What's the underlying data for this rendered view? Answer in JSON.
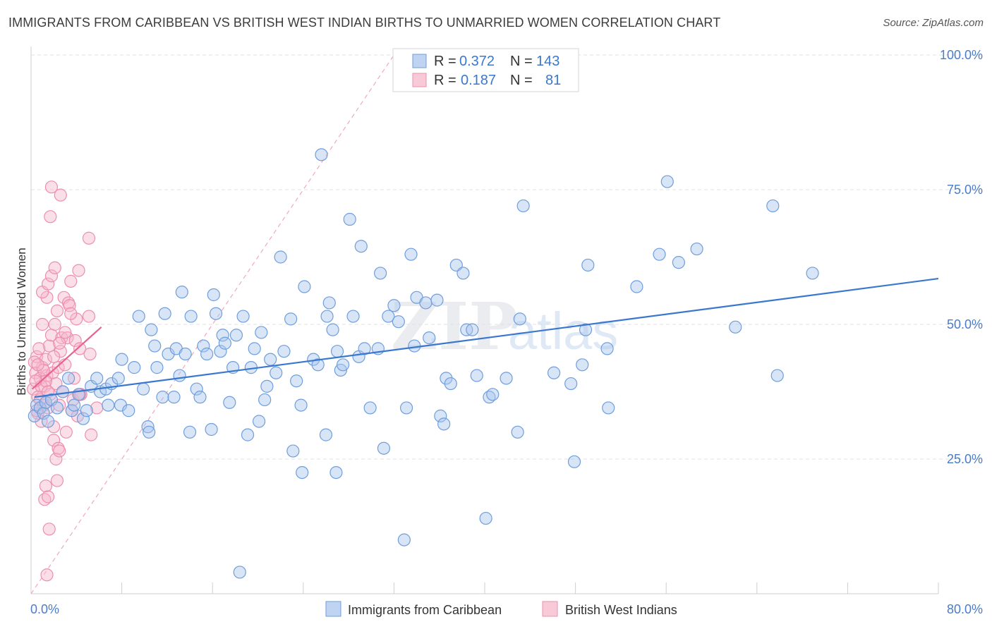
{
  "header": {
    "title": "IMMIGRANTS FROM CARIBBEAN VS BRITISH WEST INDIAN BIRTHS TO UNMARRIED WOMEN CORRELATION CHART",
    "source": "Source: ZipAtlas.com"
  },
  "watermark": {
    "zip": "ZIP",
    "atlas": "atlas"
  },
  "legend": {
    "r_label": "R =",
    "n_label": "N =",
    "series": [
      {
        "r": "0.372",
        "n": "143"
      },
      {
        "r": "0.187",
        "n": "81"
      }
    ]
  },
  "bottom_legend": [
    "Immigrants from Caribbean",
    "British West Indians"
  ],
  "colors": {
    "blue_fill": "#a9c6ee",
    "blue_stroke": "#6f9edc",
    "blue_line": "#3a78cf",
    "pink_fill": "#f6b8cb",
    "pink_stroke": "#ec8fae",
    "pink_line": "#e8638d",
    "label_text": "#4a7cc9",
    "value_text": "#3a78cf",
    "grid": "#e2e2e2"
  },
  "chart_data": {
    "type": "scatter",
    "title": "IMMIGRANTS FROM CARIBBEAN VS BRITISH WEST INDIAN BIRTHS TO UNMARRIED WOMEN CORRELATION CHART",
    "xlabel": "",
    "ylabel": "Births to Unmarried Women",
    "xlim": [
      0,
      80
    ],
    "ylim": [
      0,
      100
    ],
    "x_tick_labels": [
      "0.0%",
      "80.0%"
    ],
    "y_ticks": [
      25,
      50,
      75,
      100
    ],
    "y_tick_labels": [
      "25.0%",
      "50.0%",
      "75.0%",
      "100.0%"
    ],
    "grid": true,
    "legend_position": "top-center",
    "series": [
      {
        "name": "Immigrants from Caribbean",
        "r": 0.372,
        "n": 143,
        "trend": [
          [
            0.3,
            36.5
          ],
          [
            80,
            58.5
          ]
        ],
        "points": [
          [
            0.3,
            33
          ],
          [
            0.5,
            35
          ],
          [
            0.8,
            34.5
          ],
          [
            1.1,
            33.5
          ],
          [
            1.3,
            35.5
          ],
          [
            1.5,
            32
          ],
          [
            1.8,
            36
          ],
          [
            2.3,
            34.5
          ],
          [
            2.8,
            37.5
          ],
          [
            3.3,
            40
          ],
          [
            3.6,
            34
          ],
          [
            3.8,
            35
          ],
          [
            4.2,
            37
          ],
          [
            4.6,
            32.5
          ],
          [
            4.9,
            34
          ],
          [
            5.3,
            38.5
          ],
          [
            5.8,
            40
          ],
          [
            6.1,
            37.5
          ],
          [
            6.6,
            38
          ],
          [
            6.8,
            35
          ],
          [
            7.1,
            39
          ],
          [
            7.7,
            40
          ],
          [
            7.9,
            35
          ],
          [
            8,
            43.5
          ],
          [
            8.6,
            34
          ],
          [
            9.1,
            42
          ],
          [
            9.5,
            51.5
          ],
          [
            9.9,
            38
          ],
          [
            10.3,
            31
          ],
          [
            10.4,
            30
          ],
          [
            10.6,
            49
          ],
          [
            10.9,
            46
          ],
          [
            11.1,
            42
          ],
          [
            11.6,
            36.5
          ],
          [
            11.8,
            52
          ],
          [
            12.1,
            44.5
          ],
          [
            12.6,
            36.5
          ],
          [
            12.8,
            45.5
          ],
          [
            13.1,
            40.5
          ],
          [
            13.3,
            56
          ],
          [
            13.6,
            44.5
          ],
          [
            14,
            30
          ],
          [
            14.1,
            51.5
          ],
          [
            14.6,
            38
          ],
          [
            14.9,
            36.5
          ],
          [
            15.2,
            46
          ],
          [
            15.5,
            44.5
          ],
          [
            15.9,
            30.5
          ],
          [
            16.1,
            55.5
          ],
          [
            16.3,
            52
          ],
          [
            16.7,
            45
          ],
          [
            16.9,
            48
          ],
          [
            17.1,
            46.5
          ],
          [
            17.5,
            35.5
          ],
          [
            17.8,
            42
          ],
          [
            18.1,
            48
          ],
          [
            18.4,
            4
          ],
          [
            18.7,
            51.5
          ],
          [
            19.1,
            29.5
          ],
          [
            19.4,
            42
          ],
          [
            19.7,
            45.5
          ],
          [
            20.1,
            32
          ],
          [
            20.3,
            48.5
          ],
          [
            20.6,
            36
          ],
          [
            20.8,
            38.5
          ],
          [
            21.1,
            43.5
          ],
          [
            21.6,
            41
          ],
          [
            22,
            62.5
          ],
          [
            22.3,
            45
          ],
          [
            22.9,
            51
          ],
          [
            23.1,
            26.5
          ],
          [
            23.4,
            39.5
          ],
          [
            23.8,
            35
          ],
          [
            23.9,
            22.5
          ],
          [
            24.1,
            57
          ],
          [
            24.9,
            43.5
          ],
          [
            25.3,
            42.5
          ],
          [
            25.6,
            81.5
          ],
          [
            26,
            29.5
          ],
          [
            26.1,
            51.5
          ],
          [
            26.3,
            54
          ],
          [
            26.6,
            49
          ],
          [
            26.9,
            22.5
          ],
          [
            27,
            45
          ],
          [
            27.3,
            41.5
          ],
          [
            27.5,
            42.5
          ],
          [
            28.1,
            69.5
          ],
          [
            28.4,
            51.5
          ],
          [
            28.9,
            44
          ],
          [
            29.1,
            64.5
          ],
          [
            29.4,
            45.5
          ],
          [
            29.9,
            34.5
          ],
          [
            30.6,
            45.5
          ],
          [
            30.8,
            59.5
          ],
          [
            31.1,
            27
          ],
          [
            31.5,
            51.5
          ],
          [
            32,
            53.5
          ],
          [
            32.4,
            50.5
          ],
          [
            33.1,
            34.5
          ],
          [
            33.5,
            63
          ],
          [
            33.8,
            46
          ],
          [
            34,
            55
          ],
          [
            34.8,
            54
          ],
          [
            35.1,
            47.5
          ],
          [
            35.8,
            54.5
          ],
          [
            36.1,
            33
          ],
          [
            36.4,
            31.5
          ],
          [
            36.6,
            40
          ],
          [
            37,
            39
          ],
          [
            37.5,
            61
          ],
          [
            38.1,
            59.5
          ],
          [
            38.4,
            49
          ],
          [
            38.9,
            49
          ],
          [
            39.3,
            40.5
          ],
          [
            40.1,
            14
          ],
          [
            40.4,
            36.5
          ],
          [
            40.7,
            37
          ],
          [
            41.9,
            40
          ],
          [
            42.9,
            30
          ],
          [
            43.1,
            51
          ],
          [
            43.4,
            72
          ],
          [
            46.1,
            41
          ],
          [
            47.6,
            39
          ],
          [
            47.9,
            24.5
          ],
          [
            48.6,
            42.5
          ],
          [
            49.1,
            61
          ],
          [
            50.8,
            45.5
          ],
          [
            50.9,
            34.5
          ],
          [
            53.4,
            57
          ],
          [
            55.4,
            63
          ],
          [
            56.1,
            76.5
          ],
          [
            57.1,
            61.5
          ],
          [
            58.7,
            64
          ],
          [
            62.1,
            49.5
          ],
          [
            65.4,
            72
          ],
          [
            65.8,
            40.5
          ],
          [
            68.9,
            59.5
          ],
          [
            32.9,
            10
          ],
          [
            48.9,
            49
          ]
        ]
      },
      {
        "name": "British West Indians",
        "r": 0.187,
        "n": 81,
        "trend": [
          [
            0.1,
            38
          ],
          [
            6.2,
            49.5
          ]
        ],
        "points": [
          [
            0.2,
            38
          ],
          [
            0.4,
            41
          ],
          [
            0.5,
            44
          ],
          [
            0.6,
            36.5
          ],
          [
            0.8,
            40
          ],
          [
            0.9,
            32
          ],
          [
            1.1,
            35
          ],
          [
            1,
            42
          ],
          [
            1.2,
            38.5
          ],
          [
            1.3,
            43.5
          ],
          [
            1.4,
            40.5
          ],
          [
            1.4,
            55
          ],
          [
            1.5,
            34.5
          ],
          [
            1.6,
            46
          ],
          [
            1.7,
            37
          ],
          [
            1.8,
            48
          ],
          [
            1.9,
            41
          ],
          [
            2,
            31
          ],
          [
            2.1,
            50
          ],
          [
            2.2,
            39
          ],
          [
            2.3,
            52.5
          ],
          [
            2.4,
            42
          ],
          [
            2.5,
            35
          ],
          [
            2.6,
            45
          ],
          [
            2.7,
            47.5
          ],
          [
            2.8,
            37.5
          ],
          [
            2.9,
            55
          ],
          [
            3,
            42.5
          ],
          [
            3.1,
            30
          ],
          [
            3.2,
            47.5
          ],
          [
            3.3,
            54
          ],
          [
            3.4,
            53.5
          ],
          [
            3.5,
            58
          ],
          [
            3.6,
            34
          ],
          [
            3.7,
            36
          ],
          [
            3.8,
            40
          ],
          [
            3.9,
            47
          ],
          [
            4,
            51
          ],
          [
            4.1,
            33
          ],
          [
            4.2,
            60
          ],
          [
            4.3,
            45.5
          ],
          [
            4.4,
            37
          ],
          [
            1,
            56
          ],
          [
            1.5,
            57.5
          ],
          [
            1.8,
            75.5
          ],
          [
            1.7,
            70
          ],
          [
            2.6,
            74
          ],
          [
            4.3,
            37
          ],
          [
            5.8,
            34.5
          ],
          [
            5.2,
            44.5
          ],
          [
            5.1,
            51.5
          ],
          [
            5.3,
            29.5
          ],
          [
            5.1,
            66
          ],
          [
            1.3,
            20
          ],
          [
            1.2,
            17.5
          ],
          [
            1.5,
            18
          ],
          [
            1.6,
            12
          ],
          [
            1.4,
            3.5
          ],
          [
            2,
            28.5
          ],
          [
            2.2,
            25
          ],
          [
            2.3,
            21
          ],
          [
            2.4,
            27
          ],
          [
            2.5,
            26.5
          ],
          [
            0.9,
            38.5
          ],
          [
            0.8,
            36
          ],
          [
            0.6,
            33.5
          ],
          [
            0.5,
            34
          ],
          [
            0.3,
            43
          ],
          [
            0.7,
            45.5
          ],
          [
            1.1,
            41.5
          ],
          [
            1.3,
            39.5
          ],
          [
            1.5,
            37.5
          ],
          [
            2,
            44
          ],
          [
            2.5,
            46.5
          ],
          [
            3,
            48.5
          ],
          [
            3.5,
            52
          ],
          [
            1,
            50
          ],
          [
            0.4,
            39.5
          ],
          [
            0.6,
            42.5
          ],
          [
            1.8,
            59
          ],
          [
            2.1,
            60.5
          ]
        ]
      }
    ]
  }
}
